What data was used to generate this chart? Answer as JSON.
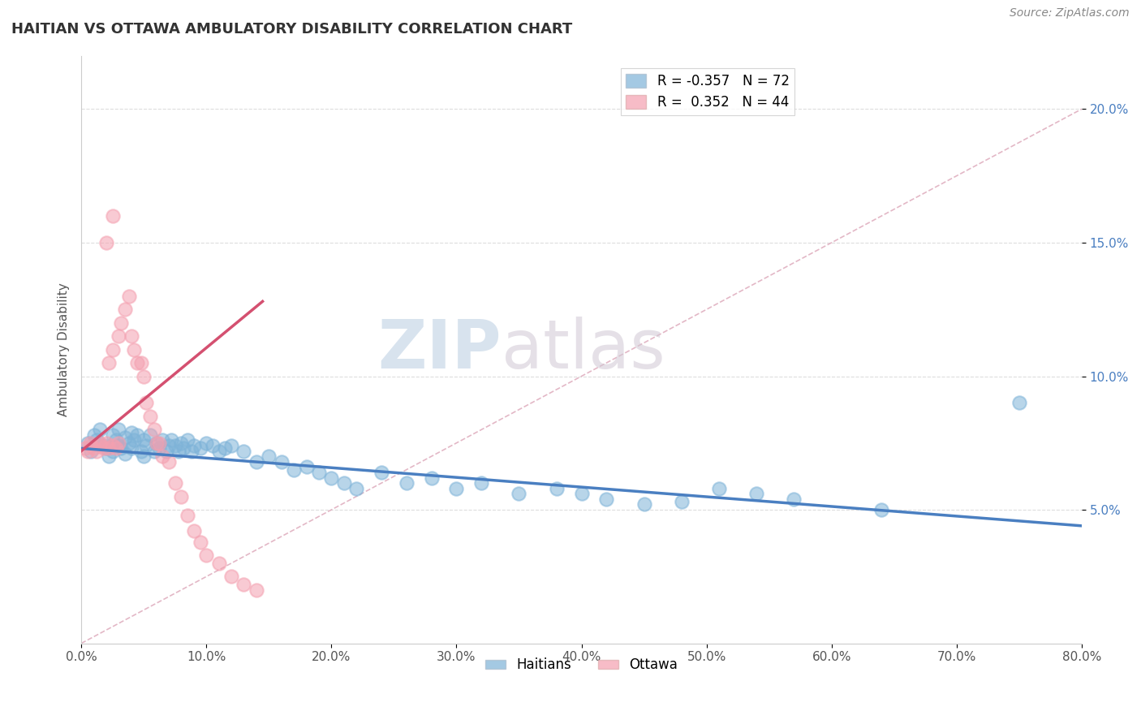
{
  "title": "HAITIAN VS OTTAWA AMBULATORY DISABILITY CORRELATION CHART",
  "source": "Source: ZipAtlas.com",
  "ylabel": "Ambulatory Disability",
  "xlabel_haitians": "Haitians",
  "xlabel_ottawa": "Ottawa",
  "legend_blue": {
    "R": "-0.357",
    "N": "72"
  },
  "legend_pink": {
    "R": "0.352",
    "N": "44"
  },
  "blue_color": "#7EB3D8",
  "pink_color": "#F4A0B0",
  "blue_line_color": "#4A7FC1",
  "pink_line_color": "#D45070",
  "diag_color": "#E0B0C0",
  "watermark_zip": "ZIP",
  "watermark_atlas": "atlas",
  "xlim": [
    0.0,
    0.8
  ],
  "ylim": [
    0.0,
    0.22
  ],
  "xticks": [
    0.0,
    0.1,
    0.2,
    0.3,
    0.4,
    0.5,
    0.6,
    0.7,
    0.8
  ],
  "yticks": [
    0.05,
    0.1,
    0.15,
    0.2
  ],
  "xtick_labels": [
    "0.0%",
    "10.0%",
    "20.0%",
    "30.0%",
    "40.0%",
    "50.0%",
    "60.0%",
    "70.0%",
    "80.0%"
  ],
  "ytick_labels": [
    "5.0%",
    "10.0%",
    "15.0%",
    "20.0%"
  ],
  "blue_x": [
    0.005,
    0.008,
    0.01,
    0.012,
    0.015,
    0.018,
    0.02,
    0.022,
    0.025,
    0.025,
    0.028,
    0.03,
    0.03,
    0.032,
    0.035,
    0.035,
    0.038,
    0.04,
    0.04,
    0.042,
    0.045,
    0.048,
    0.05,
    0.05,
    0.052,
    0.055,
    0.058,
    0.06,
    0.062,
    0.065,
    0.068,
    0.07,
    0.072,
    0.075,
    0.078,
    0.08,
    0.082,
    0.085,
    0.088,
    0.09,
    0.095,
    0.1,
    0.105,
    0.11,
    0.115,
    0.12,
    0.13,
    0.14,
    0.15,
    0.16,
    0.17,
    0.18,
    0.19,
    0.2,
    0.21,
    0.22,
    0.24,
    0.26,
    0.28,
    0.3,
    0.32,
    0.35,
    0.38,
    0.4,
    0.42,
    0.45,
    0.48,
    0.51,
    0.54,
    0.57,
    0.64,
    0.75
  ],
  "blue_y": [
    0.075,
    0.072,
    0.078,
    0.076,
    0.08,
    0.074,
    0.073,
    0.07,
    0.078,
    0.072,
    0.076,
    0.08,
    0.074,
    0.073,
    0.077,
    0.071,
    0.075,
    0.079,
    0.073,
    0.076,
    0.078,
    0.072,
    0.076,
    0.07,
    0.074,
    0.078,
    0.072,
    0.075,
    0.073,
    0.076,
    0.072,
    0.074,
    0.076,
    0.074,
    0.072,
    0.075,
    0.073,
    0.076,
    0.072,
    0.074,
    0.073,
    0.075,
    0.074,
    0.072,
    0.073,
    0.074,
    0.072,
    0.068,
    0.07,
    0.068,
    0.065,
    0.066,
    0.064,
    0.062,
    0.06,
    0.058,
    0.064,
    0.06,
    0.062,
    0.058,
    0.06,
    0.056,
    0.058,
    0.056,
    0.054,
    0.052,
    0.053,
    0.058,
    0.056,
    0.054,
    0.05,
    0.09
  ],
  "pink_x": [
    0.003,
    0.005,
    0.007,
    0.008,
    0.01,
    0.012,
    0.015,
    0.015,
    0.018,
    0.02,
    0.022,
    0.022,
    0.025,
    0.025,
    0.028,
    0.03,
    0.03,
    0.032,
    0.035,
    0.038,
    0.04,
    0.042,
    0.045,
    0.048,
    0.05,
    0.052,
    0.055,
    0.058,
    0.06,
    0.062,
    0.065,
    0.07,
    0.075,
    0.08,
    0.085,
    0.09,
    0.095,
    0.1,
    0.11,
    0.12,
    0.13,
    0.14,
    0.02,
    0.025
  ],
  "pink_y": [
    0.073,
    0.072,
    0.075,
    0.074,
    0.073,
    0.072,
    0.075,
    0.074,
    0.073,
    0.075,
    0.073,
    0.105,
    0.074,
    0.11,
    0.073,
    0.115,
    0.075,
    0.12,
    0.125,
    0.13,
    0.115,
    0.11,
    0.105,
    0.105,
    0.1,
    0.09,
    0.085,
    0.08,
    0.075,
    0.075,
    0.07,
    0.068,
    0.06,
    0.055,
    0.048,
    0.042,
    0.038,
    0.033,
    0.03,
    0.025,
    0.022,
    0.02,
    0.15,
    0.16
  ],
  "diagonal_line_x": [
    0.0,
    0.8
  ],
  "diagonal_line_y": [
    0.0,
    0.2
  ],
  "blue_line_x": [
    0.0,
    0.8
  ],
  "blue_line_y": [
    0.073,
    0.044
  ],
  "pink_line_x": [
    0.0,
    0.145
  ],
  "pink_line_y": [
    0.072,
    0.128
  ]
}
